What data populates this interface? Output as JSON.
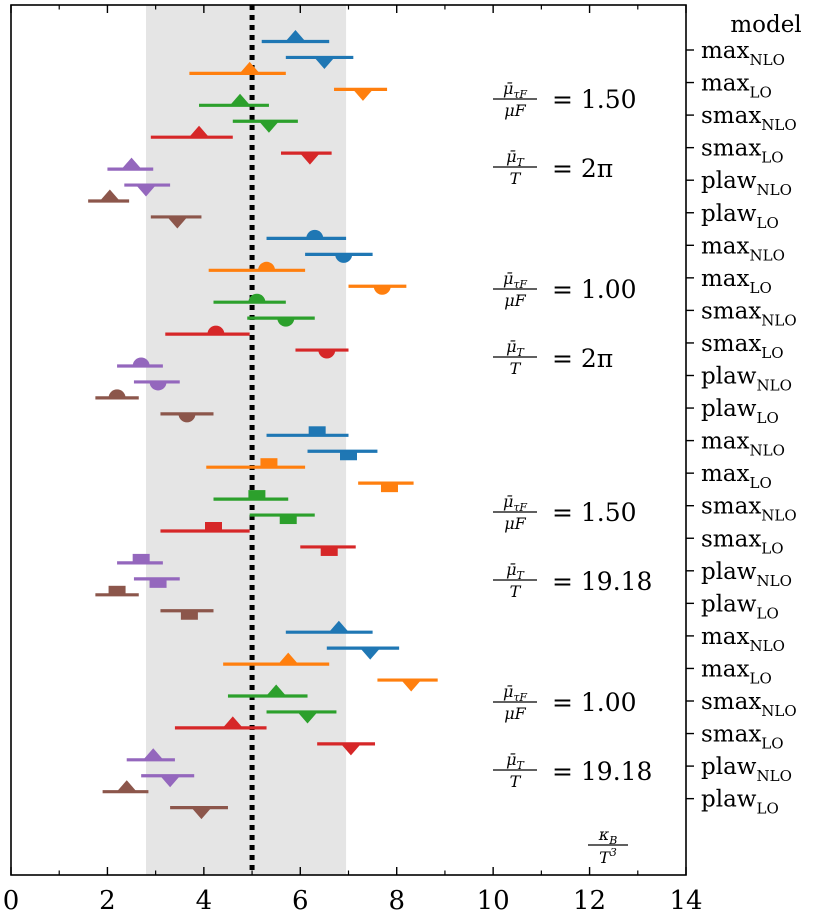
{
  "chart_data": {
    "type": "scatter",
    "title": "",
    "xlabel": "κ_B / T^3",
    "xlabel_parts": {
      "numer": "κ",
      "numer_sub": "B",
      "denom": "T",
      "denom_sup": "3"
    },
    "ylabel": "",
    "xlim": [
      0,
      14
    ],
    "x_ticks": [
      "0",
      "2",
      "4",
      "6",
      "8",
      "10",
      "12",
      "14"
    ],
    "x_tick_values": [
      0,
      2,
      4,
      6,
      8,
      10,
      12,
      14
    ],
    "reference_line": 5.0,
    "shaded_band": [
      2.8,
      6.95
    ],
    "legend_title": "model",
    "y_axis_labels": [
      {
        "base": "max",
        "sub": "NLO"
      },
      {
        "base": "max",
        "sub": "LO"
      },
      {
        "base": "smax",
        "sub": "NLO"
      },
      {
        "base": "smax",
        "sub": "LO"
      },
      {
        "base": "plaw",
        "sub": "NLO"
      },
      {
        "base": "plaw",
        "sub": "LO"
      },
      {
        "base": "max",
        "sub": "NLO"
      },
      {
        "base": "max",
        "sub": "LO"
      },
      {
        "base": "smax",
        "sub": "NLO"
      },
      {
        "base": "smax",
        "sub": "LO"
      },
      {
        "base": "plaw",
        "sub": "NLO"
      },
      {
        "base": "plaw",
        "sub": "LO"
      },
      {
        "base": "max",
        "sub": "NLO"
      },
      {
        "base": "max",
        "sub": "LO"
      },
      {
        "base": "smax",
        "sub": "NLO"
      },
      {
        "base": "smax",
        "sub": "LO"
      },
      {
        "base": "plaw",
        "sub": "NLO"
      },
      {
        "base": "plaw",
        "sub": "LO"
      },
      {
        "base": "max",
        "sub": "NLO"
      },
      {
        "base": "max",
        "sub": "LO"
      },
      {
        "base": "smax",
        "sub": "NLO"
      },
      {
        "base": "smax",
        "sub": "LO"
      },
      {
        "base": "plaw",
        "sub": "NLO"
      },
      {
        "base": "plaw",
        "sub": "LO"
      }
    ],
    "colors": {
      "max": "#1f77b4",
      "maxLO": "#ff7f0e",
      "smax": "#2ca02c",
      "smaxLO": "#d62728",
      "plaw": "#9467bd",
      "plawLO": "#8c564b",
      "band": "#e5e5e5"
    },
    "groups": [
      {
        "marker": "triangle",
        "annotation": {
          "ratio_tauF": "= 1.50",
          "ratio_T": "=  2π"
        },
        "points": [
          {
            "model": "maxNLO",
            "color_key": "max",
            "variant": "a",
            "center": 5.9,
            "low": 5.2,
            "high": 6.6
          },
          {
            "model": "maxNLO",
            "color_key": "max",
            "variant": "b",
            "center": 6.5,
            "low": 5.7,
            "high": 7.1
          },
          {
            "model": "maxLO",
            "color_key": "maxLO",
            "variant": "a",
            "center": 4.95,
            "low": 3.7,
            "high": 5.7
          },
          {
            "model": "maxLO",
            "color_key": "maxLO",
            "variant": "b",
            "center": 7.3,
            "low": 6.7,
            "high": 7.8
          },
          {
            "model": "smaxNLO",
            "color_key": "smax",
            "variant": "a",
            "center": 4.75,
            "low": 3.9,
            "high": 5.35
          },
          {
            "model": "smaxNLO",
            "color_key": "smax",
            "variant": "b",
            "center": 5.35,
            "low": 4.6,
            "high": 5.95
          },
          {
            "model": "smaxLO",
            "color_key": "smaxLO",
            "variant": "a",
            "center": 3.9,
            "low": 2.9,
            "high": 4.6
          },
          {
            "model": "smaxLO",
            "color_key": "smaxLO",
            "variant": "b",
            "center": 6.2,
            "low": 5.6,
            "high": 6.65
          },
          {
            "model": "plawNLO",
            "color_key": "plaw",
            "variant": "a",
            "center": 2.5,
            "low": 2.0,
            "high": 2.95
          },
          {
            "model": "plawNLO",
            "color_key": "plaw",
            "variant": "b",
            "center": 2.8,
            "low": 2.35,
            "high": 3.3
          },
          {
            "model": "plawLO",
            "color_key": "plawLO",
            "variant": "a",
            "center": 2.05,
            "low": 1.6,
            "high": 2.45
          },
          {
            "model": "plawLO",
            "color_key": "plawLO",
            "variant": "b",
            "center": 3.45,
            "low": 2.9,
            "high": 3.95
          }
        ]
      },
      {
        "marker": "semicircle",
        "annotation": {
          "ratio_tauF": "= 1.00",
          "ratio_T": "=  2π"
        },
        "points": [
          {
            "model": "maxNLO",
            "color_key": "max",
            "variant": "a",
            "center": 6.3,
            "low": 5.3,
            "high": 6.95
          },
          {
            "model": "maxNLO",
            "color_key": "max",
            "variant": "b",
            "center": 6.9,
            "low": 6.1,
            "high": 7.5
          },
          {
            "model": "maxLO",
            "color_key": "maxLO",
            "variant": "a",
            "center": 5.3,
            "low": 4.1,
            "high": 6.1
          },
          {
            "model": "maxLO",
            "color_key": "maxLO",
            "variant": "b",
            "center": 7.7,
            "low": 7.0,
            "high": 8.2
          },
          {
            "model": "smaxNLO",
            "color_key": "smax",
            "variant": "a",
            "center": 5.1,
            "low": 4.2,
            "high": 5.7
          },
          {
            "model": "smaxNLO",
            "color_key": "smax",
            "variant": "b",
            "center": 5.7,
            "low": 4.9,
            "high": 6.3
          },
          {
            "model": "smaxLO",
            "color_key": "smaxLO",
            "variant": "a",
            "center": 4.25,
            "low": 3.2,
            "high": 4.95
          },
          {
            "model": "smaxLO",
            "color_key": "smaxLO",
            "variant": "b",
            "center": 6.55,
            "low": 5.9,
            "high": 7.0
          },
          {
            "model": "plawNLO",
            "color_key": "plaw",
            "variant": "a",
            "center": 2.7,
            "low": 2.2,
            "high": 3.15
          },
          {
            "model": "plawNLO",
            "color_key": "plaw",
            "variant": "b",
            "center": 3.05,
            "low": 2.55,
            "high": 3.5
          },
          {
            "model": "plawLO",
            "color_key": "plawLO",
            "variant": "a",
            "center": 2.2,
            "low": 1.75,
            "high": 2.65
          },
          {
            "model": "plawLO",
            "color_key": "plawLO",
            "variant": "b",
            "center": 3.65,
            "low": 3.1,
            "high": 4.2
          }
        ]
      },
      {
        "marker": "square",
        "annotation": {
          "ratio_tauF": "= 1.50",
          "ratio_T": "= 19.18"
        },
        "points": [
          {
            "model": "maxNLO",
            "color_key": "max",
            "variant": "a",
            "center": 6.35,
            "low": 5.3,
            "high": 7.0
          },
          {
            "model": "maxNLO",
            "color_key": "max",
            "variant": "b",
            "center": 7.0,
            "low": 6.15,
            "high": 7.6
          },
          {
            "model": "maxLO",
            "color_key": "maxLO",
            "variant": "a",
            "center": 5.35,
            "low": 4.05,
            "high": 6.1
          },
          {
            "model": "maxLO",
            "color_key": "maxLO",
            "variant": "b",
            "center": 7.85,
            "low": 7.2,
            "high": 8.35
          },
          {
            "model": "smaxNLO",
            "color_key": "smax",
            "variant": "a",
            "center": 5.1,
            "low": 4.2,
            "high": 5.75
          },
          {
            "model": "smaxNLO",
            "color_key": "smax",
            "variant": "b",
            "center": 5.75,
            "low": 4.95,
            "high": 6.3
          },
          {
            "model": "smaxLO",
            "color_key": "smaxLO",
            "variant": "a",
            "center": 4.2,
            "low": 3.1,
            "high": 4.95
          },
          {
            "model": "smaxLO",
            "color_key": "smaxLO",
            "variant": "b",
            "center": 6.6,
            "low": 6.0,
            "high": 7.15
          },
          {
            "model": "plawNLO",
            "color_key": "plaw",
            "variant": "a",
            "center": 2.7,
            "low": 2.2,
            "high": 3.15
          },
          {
            "model": "plawNLO",
            "color_key": "plaw",
            "variant": "b",
            "center": 3.05,
            "low": 2.55,
            "high": 3.5
          },
          {
            "model": "plawLO",
            "color_key": "plawLO",
            "variant": "a",
            "center": 2.2,
            "low": 1.75,
            "high": 2.65
          },
          {
            "model": "plawLO",
            "color_key": "plawLO",
            "variant": "b",
            "center": 3.7,
            "low": 3.1,
            "high": 4.2
          }
        ]
      },
      {
        "marker": "triangle",
        "annotation": {
          "ratio_tauF": "=  1.00",
          "ratio_T": "= 19.18"
        },
        "points": [
          {
            "model": "maxNLO",
            "color_key": "max",
            "variant": "a",
            "center": 6.8,
            "low": 5.7,
            "high": 7.5
          },
          {
            "model": "maxNLO",
            "color_key": "max",
            "variant": "b",
            "center": 7.45,
            "low": 6.55,
            "high": 8.05
          },
          {
            "model": "maxLO",
            "color_key": "maxLO",
            "variant": "a",
            "center": 5.75,
            "low": 4.4,
            "high": 6.6
          },
          {
            "model": "maxLO",
            "color_key": "maxLO",
            "variant": "b",
            "center": 8.3,
            "low": 7.6,
            "high": 8.85
          },
          {
            "model": "smaxNLO",
            "color_key": "smax",
            "variant": "a",
            "center": 5.5,
            "low": 4.5,
            "high": 6.15
          },
          {
            "model": "smaxNLO",
            "color_key": "smax",
            "variant": "b",
            "center": 6.15,
            "low": 5.3,
            "high": 6.75
          },
          {
            "model": "smaxLO",
            "color_key": "smaxLO",
            "variant": "a",
            "center": 4.6,
            "low": 3.4,
            "high": 5.3
          },
          {
            "model": "smaxLO",
            "color_key": "smaxLO",
            "variant": "b",
            "center": 7.05,
            "low": 6.35,
            "high": 7.55
          },
          {
            "model": "plawNLO",
            "color_key": "plaw",
            "variant": "a",
            "center": 2.95,
            "low": 2.4,
            "high": 3.4
          },
          {
            "model": "plawNLO",
            "color_key": "plaw",
            "variant": "b",
            "center": 3.3,
            "low": 2.7,
            "high": 3.8
          },
          {
            "model": "plawLO",
            "color_key": "plawLO",
            "variant": "a",
            "center": 2.4,
            "low": 1.9,
            "high": 2.85
          },
          {
            "model": "plawLO",
            "color_key": "plawLO",
            "variant": "b",
            "center": 3.95,
            "low": 3.3,
            "high": 4.5
          }
        ]
      }
    ]
  }
}
